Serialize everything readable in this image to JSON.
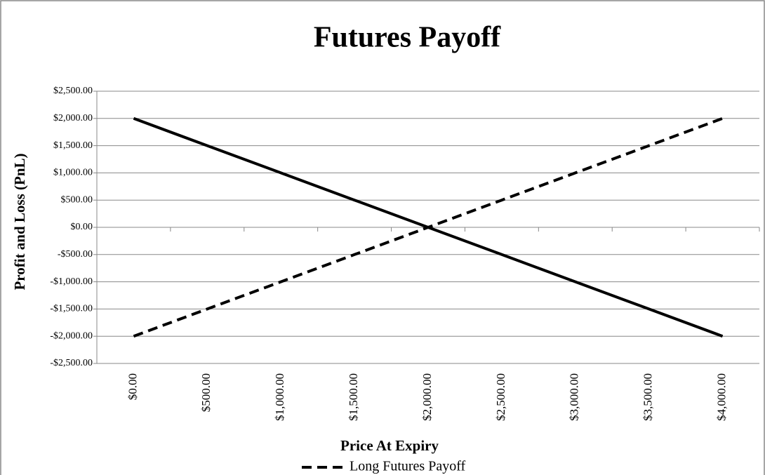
{
  "chart_data": {
    "type": "line",
    "title": "Futures Payoff",
    "y_label": "Profit and Loss (PnL)",
    "x_label": "Price At Expiry",
    "categories": [
      "$0.00",
      "$500.00",
      "$1,000.00",
      "$1,500.00",
      "$2,000.00",
      "$2,500.00",
      "$3,000.00",
      "$3,500.00",
      "$4,000.00"
    ],
    "series": [
      {
        "name": "Long Futures Payoff",
        "color": "#000000",
        "dash": true,
        "values": [
          -2000,
          -1500,
          -1000,
          -500,
          0,
          500,
          1000,
          1500,
          2000
        ]
      },
      {
        "color": "#000000",
        "dash": false,
        "values": [
          2000,
          1500,
          1000,
          500,
          0,
          -500,
          -1000,
          -1500,
          -2000
        ]
      }
    ],
    "ylim": [
      -2500,
      2500
    ],
    "yticks": [
      {
        "value": -2500,
        "label": "-$2,500.00"
      },
      {
        "value": -2000,
        "label": "-$2,000.00"
      },
      {
        "value": -1500,
        "label": "-$1,500.00"
      },
      {
        "value": -1000,
        "label": "-$1,000.00"
      },
      {
        "value": -500,
        "label": "-$500.00"
      },
      {
        "value": 0,
        "label": "$0.00"
      },
      {
        "value": 500,
        "label": "$500.00"
      },
      {
        "value": 1000,
        "label": "$1,000.00"
      },
      {
        "value": 1500,
        "label": "$1,500.00"
      },
      {
        "value": 2000,
        "label": "$2,000.00"
      },
      {
        "value": 2500,
        "label": "$2,500.00"
      }
    ],
    "grid": true
  }
}
